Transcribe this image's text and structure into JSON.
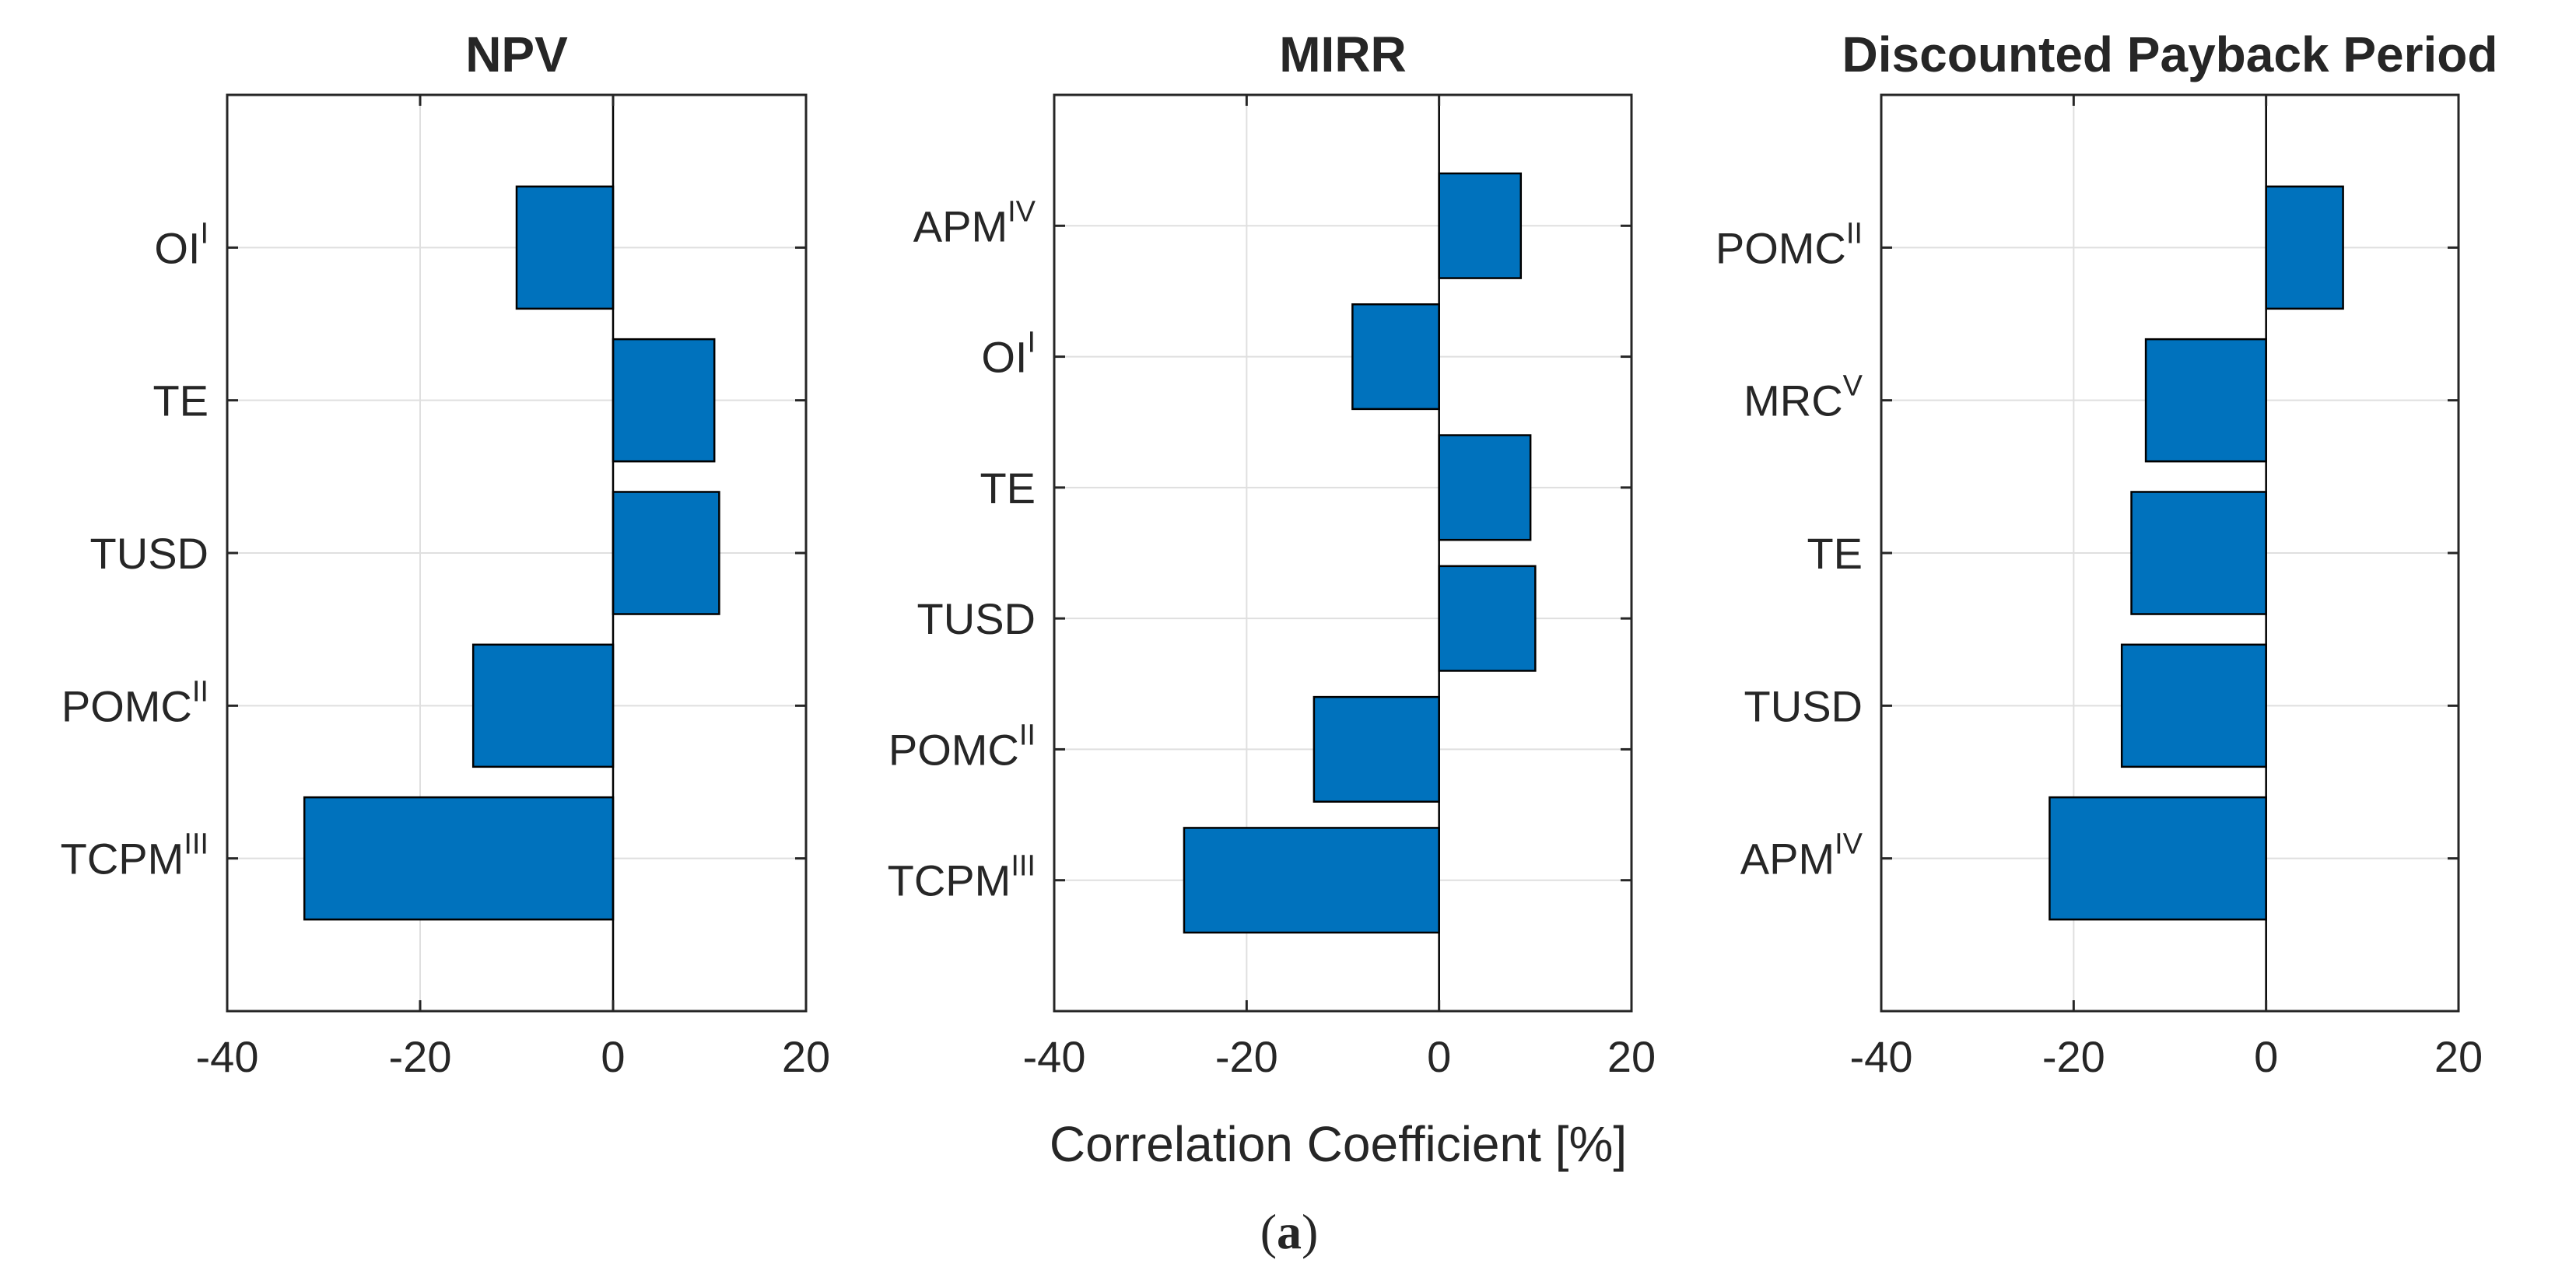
{
  "chart_data": [
    {
      "type": "bar",
      "orientation": "horizontal",
      "title": "NPV",
      "xlim": [
        -40,
        20
      ],
      "xticks": [
        -40,
        -20,
        0,
        20
      ],
      "grid": true,
      "categories": [
        {
          "label": "OI",
          "sup": "I"
        },
        {
          "label": "TE",
          "sup": ""
        },
        {
          "label": "TUSD",
          "sup": ""
        },
        {
          "label": "POMC",
          "sup": "II"
        },
        {
          "label": "TCPM",
          "sup": "III"
        }
      ],
      "values": [
        -10,
        10.5,
        11,
        -14.5,
        -32
      ]
    },
    {
      "type": "bar",
      "orientation": "horizontal",
      "title": "MIRR",
      "xlim": [
        -40,
        20
      ],
      "xticks": [
        -40,
        -20,
        0,
        20
      ],
      "grid": true,
      "categories": [
        {
          "label": "APM",
          "sup": "IV"
        },
        {
          "label": "OI",
          "sup": "I"
        },
        {
          "label": "TE",
          "sup": ""
        },
        {
          "label": "TUSD",
          "sup": ""
        },
        {
          "label": "POMC",
          "sup": "II"
        },
        {
          "label": "TCPM",
          "sup": "III"
        }
      ],
      "values": [
        8.5,
        -9,
        9.5,
        10,
        -13,
        -26.5
      ]
    },
    {
      "type": "bar",
      "orientation": "horizontal",
      "title": "Discounted Payback Period",
      "xlim": [
        -40,
        20
      ],
      "xticks": [
        -40,
        -20,
        0,
        20
      ],
      "grid": true,
      "categories": [
        {
          "label": "POMC",
          "sup": "II"
        },
        {
          "label": "MRC",
          "sup": "V"
        },
        {
          "label": "TE",
          "sup": ""
        },
        {
          "label": "TUSD",
          "sup": ""
        },
        {
          "label": "APM",
          "sup": "IV"
        }
      ],
      "values": [
        8,
        -12.5,
        -14,
        -15,
        -22.5
      ]
    }
  ],
  "xlabel": "Correlation Coefficient [%]",
  "caption": {
    "open": "(",
    "letter": "a",
    "close": ")"
  },
  "colors": {
    "bar": "#0072BD",
    "edge": "#000000",
    "axis": "#262626",
    "grid": "#DFDFDF"
  }
}
